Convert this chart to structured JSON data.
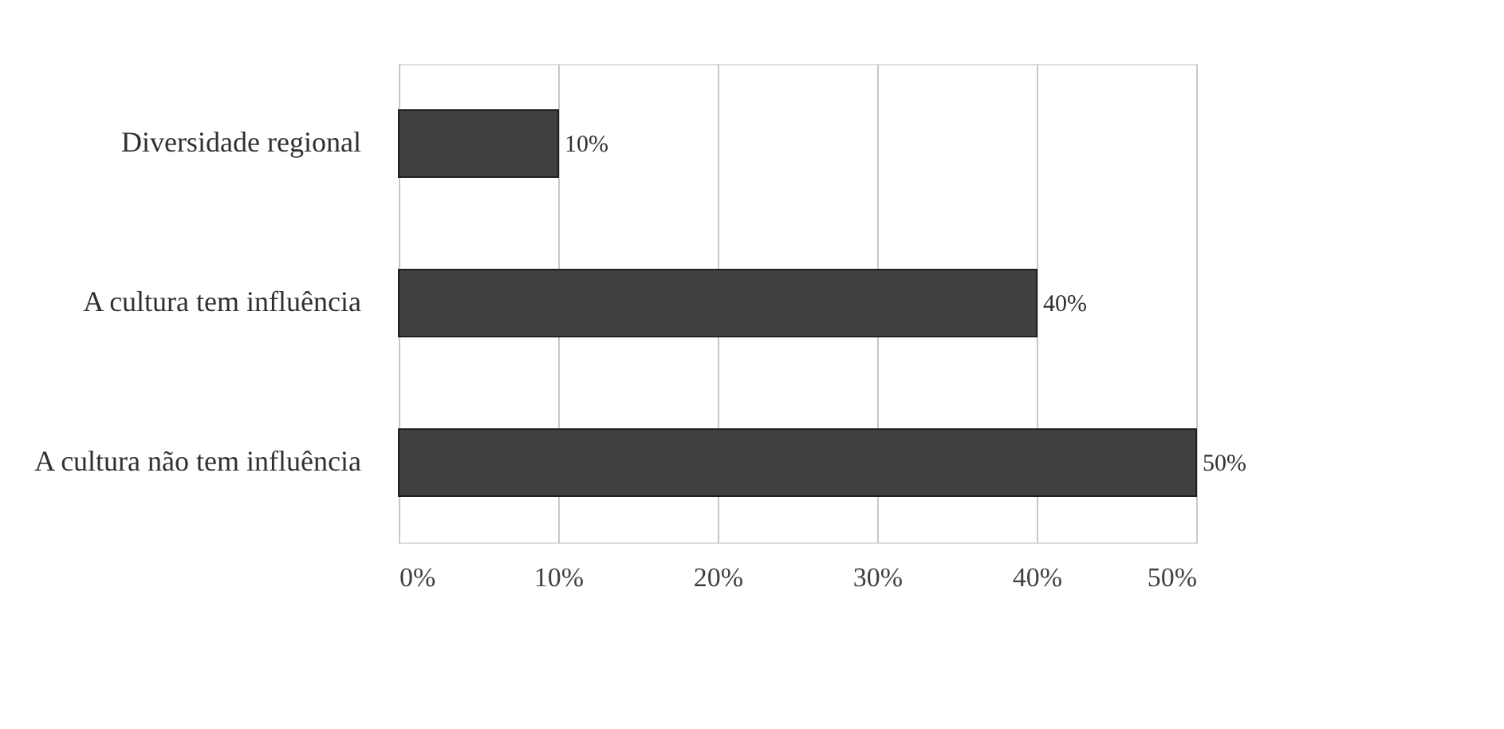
{
  "chart_data": {
    "type": "bar",
    "orientation": "horizontal",
    "categories": [
      "Diversidade regional",
      "A cultura tem influência",
      "A cultura não tem influência"
    ],
    "values": [
      10,
      40,
      50
    ],
    "color": "#404040",
    "value_labels": [
      "10%",
      "40%",
      "50%"
    ],
    "xlim": [
      0,
      50
    ],
    "xticks": [
      {
        "value": 0,
        "label": "0%"
      },
      {
        "value": 10,
        "label": "10%"
      },
      {
        "value": 20,
        "label": "20%"
      },
      {
        "value": 30,
        "label": "30%"
      },
      {
        "value": 40,
        "label": "40%"
      },
      {
        "value": 50,
        "label": "50%"
      }
    ],
    "grid": "x"
  }
}
